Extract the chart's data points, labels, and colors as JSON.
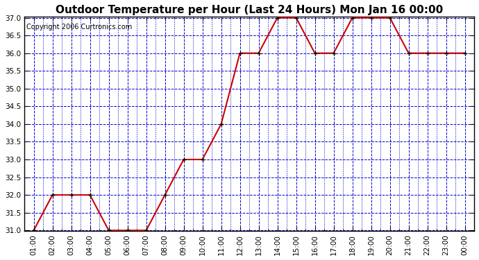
{
  "title": "Outdoor Temperature per Hour (Last 24 Hours) Mon Jan 16 00:00",
  "copyright": "Copyright 2006 Curtronics.com",
  "hours": [
    "01:00",
    "02:00",
    "03:00",
    "04:00",
    "05:00",
    "06:00",
    "07:00",
    "08:00",
    "09:00",
    "10:00",
    "11:00",
    "12:00",
    "13:00",
    "14:00",
    "15:00",
    "16:00",
    "17:00",
    "18:00",
    "19:00",
    "20:00",
    "21:00",
    "22:00",
    "23:00",
    "00:00"
  ],
  "temps": [
    31.0,
    32.0,
    32.0,
    32.0,
    31.0,
    31.0,
    31.0,
    32.0,
    33.0,
    33.0,
    34.0,
    36.0,
    36.0,
    37.0,
    37.0,
    36.0,
    36.0,
    37.0,
    37.0,
    37.0,
    36.0,
    36.0,
    36.0,
    36.0
  ],
  "ylim": [
    31.0,
    37.0
  ],
  "ytick_step": 0.5,
  "line_color": "#cc0000",
  "marker_color": "#000000",
  "grid_color": "#0000cc",
  "bg_color": "#ffffff",
  "plot_bg_color": "#ffffff",
  "title_fontsize": 11,
  "copyright_fontsize": 7,
  "tick_fontsize": 7.5,
  "axis_label_color": "#000000"
}
